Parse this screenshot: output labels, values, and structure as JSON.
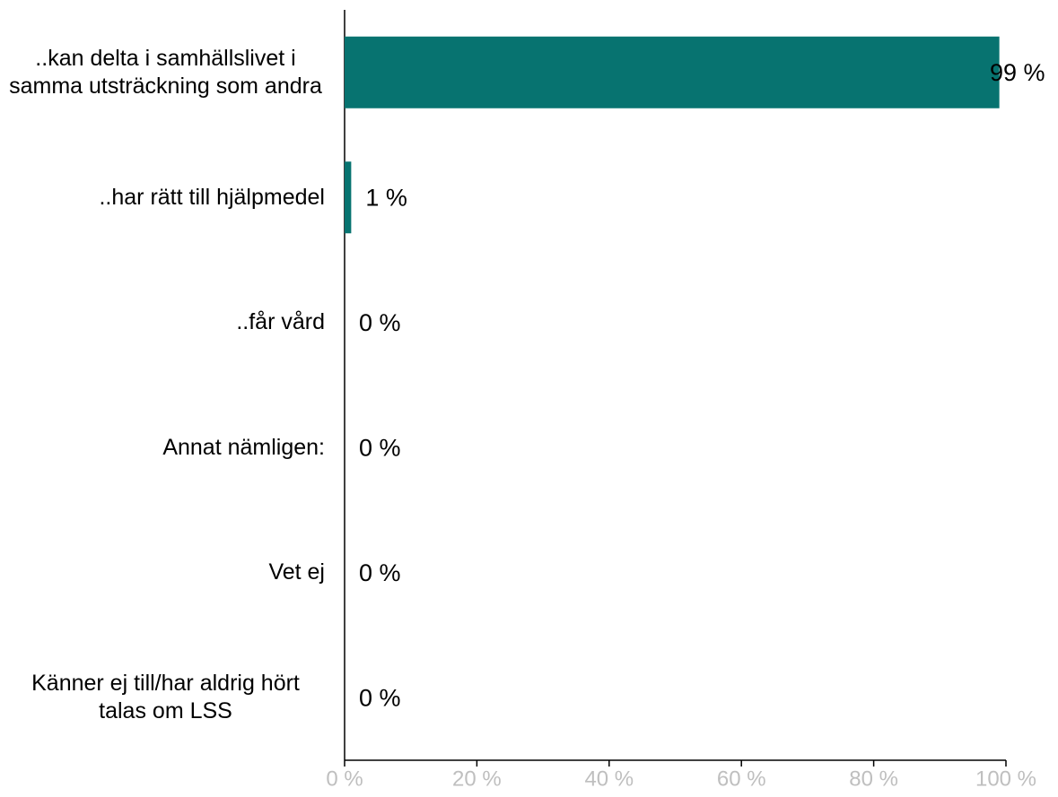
{
  "chart_data": {
    "type": "bar",
    "orientation": "horizontal",
    "categories": [
      "..kan delta i samhällslivet i samma utsträckning som andra",
      "..har rätt till hjälpmedel",
      "..får vård",
      "Annat nämligen:",
      "Vet ej",
      "Känner ej till/har aldrig hört talas om LSS"
    ],
    "values": [
      99,
      1,
      0,
      0,
      0,
      0
    ],
    "value_labels": [
      "99 %",
      "1 %",
      "0 %",
      "0 %",
      "0 %",
      "0 %"
    ],
    "color": "#077370",
    "xlim": [
      0,
      100
    ],
    "xticks": [
      {
        "value": 0,
        "label": "0 %"
      },
      {
        "value": 20,
        "label": "20 %"
      },
      {
        "value": 40,
        "label": "40 %"
      },
      {
        "value": 60,
        "label": "60 %"
      },
      {
        "value": 80,
        "label": "80 %"
      },
      {
        "value": 100,
        "label": "100 %"
      }
    ],
    "grid": false
  }
}
